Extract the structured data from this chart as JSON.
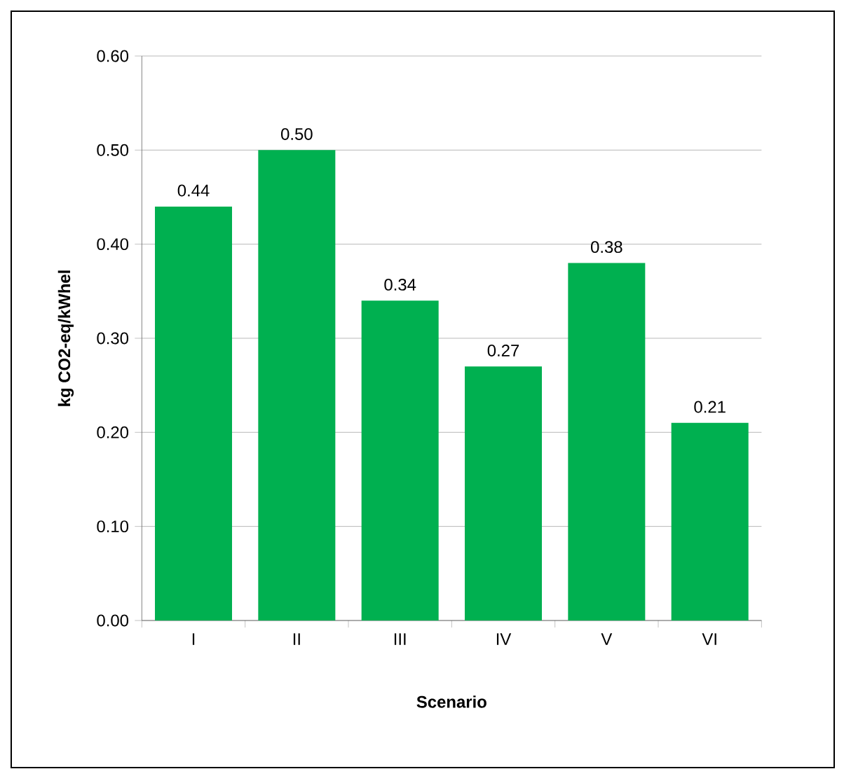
{
  "chart_data": {
    "type": "bar",
    "xlabel": "Scenario",
    "ylabel": "kg CO2-eq/kWhel",
    "categories": [
      "I",
      "II",
      "III",
      "IV",
      "V",
      "VI"
    ],
    "values": [
      0.44,
      0.5,
      0.34,
      0.27,
      0.38,
      0.21
    ],
    "value_labels": [
      "0.44",
      "0.50",
      "0.34",
      "0.27",
      "0.38",
      "0.21"
    ],
    "color": "#00b050",
    "ylim": [
      0,
      0.6
    ],
    "yticks": [
      {
        "value": 0,
        "label": "0.00"
      },
      {
        "value": 0.1,
        "label": "0.10"
      },
      {
        "value": 0.2,
        "label": "0.20"
      },
      {
        "value": 0.3,
        "label": "0.30"
      },
      {
        "value": 0.4,
        "label": "0.40"
      },
      {
        "value": 0.5,
        "label": "0.50"
      },
      {
        "value": 0.6,
        "label": "0.60"
      }
    ],
    "grid": "y"
  }
}
